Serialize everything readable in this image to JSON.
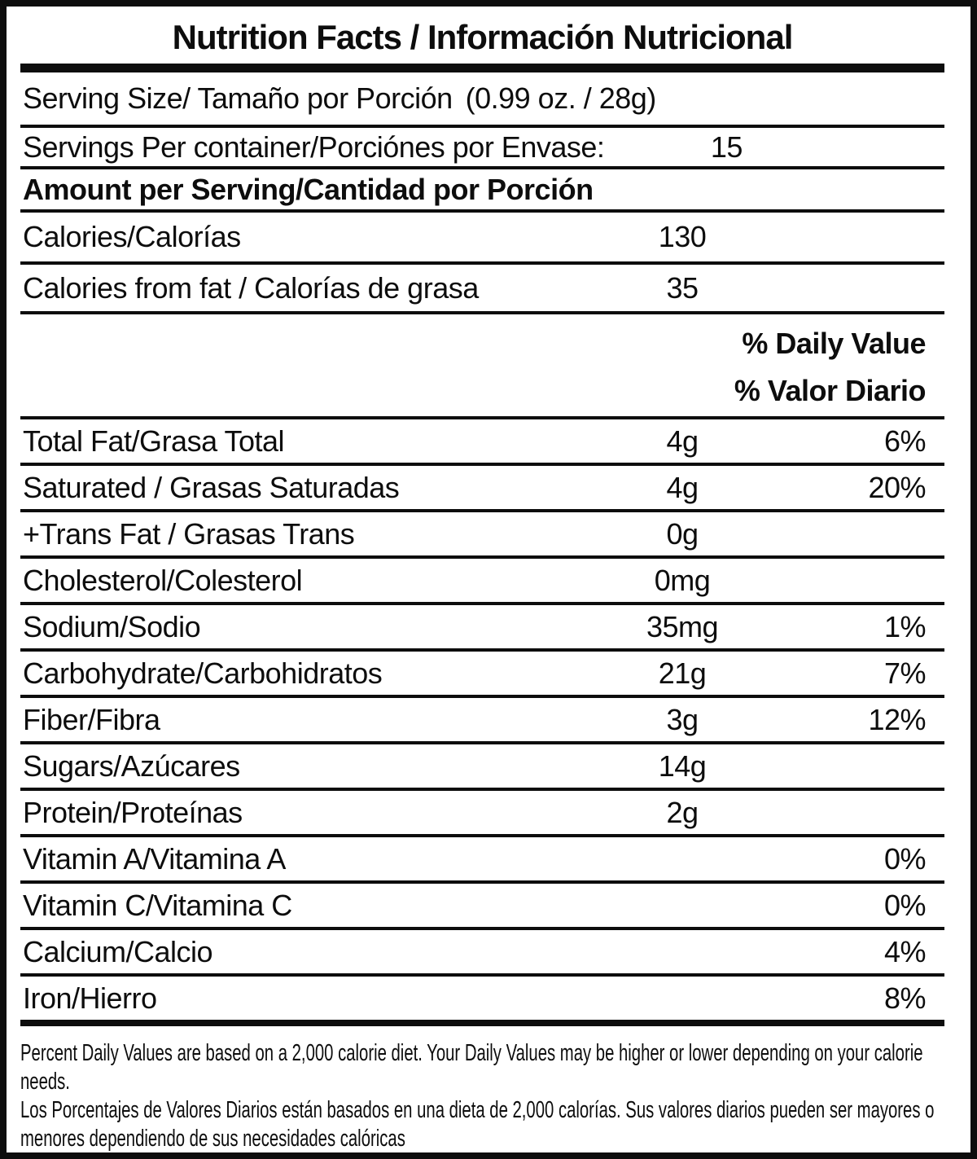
{
  "label": {
    "title": "Nutrition Facts / Información Nutricional",
    "serving_size": {
      "label": "Serving Size/ Tamaño por Porción",
      "value": "(0.99 oz. / 28g)"
    },
    "servings_per_container": {
      "label": "Servings Per container/Porciónes por Envase:",
      "value": "15"
    },
    "amount_per_serving": "Amount per Serving/Cantidad por Porción",
    "calories_rows": [
      {
        "label": "Calories/Calorías",
        "amount": "130"
      },
      {
        "label": "Calories from fat / Calorías de grasa",
        "amount": "35"
      }
    ],
    "daily_value_header": {
      "line1": "% Daily Value",
      "line2": "% Valor Diario"
    },
    "nutrient_rows": [
      {
        "label": "Total Fat/Grasa Total",
        "amount": "4g",
        "dv": "6%"
      },
      {
        "label": "Saturated / Grasas Saturadas",
        "amount": "4g",
        "dv": "20%"
      },
      {
        "label": "+Trans Fat / Grasas Trans",
        "amount": "0g",
        "dv": ""
      },
      {
        "label": "Cholesterol/Colesterol",
        "amount": "0mg",
        "dv": ""
      },
      {
        "label": "Sodium/Sodio",
        "amount": "35mg",
        "dv": "1%"
      },
      {
        "label": "Carbohydrate/Carbohidratos",
        "amount": "21g",
        "dv": "7%"
      },
      {
        "label": "Fiber/Fibra",
        "amount": "3g",
        "dv": "12%"
      },
      {
        "label": "Sugars/Azúcares",
        "amount": "14g",
        "dv": ""
      },
      {
        "label": "Protein/Proteínas",
        "amount": "2g",
        "dv": ""
      },
      {
        "label": "Vitamin A/Vitamina A",
        "amount": "",
        "dv": "0%"
      },
      {
        "label": "Vitamin C/Vitamina C",
        "amount": "",
        "dv": "0%"
      },
      {
        "label": "Calcium/Calcio",
        "amount": "",
        "dv": "4%"
      },
      {
        "label": "Iron/Hierro",
        "amount": "",
        "dv": "8%"
      }
    ],
    "footnotes": [
      "Percent Daily Values are based on a 2,000 calorie diet. Your Daily Values may be higher or lower depending on your calorie needs.",
      "Los Porcentajes de Valores Diarios están basados en una dieta de 2,000 calorías. Sus valores diarios pueden ser mayores o menores dependiendo de sus necesidades calóricas"
    ],
    "colors": {
      "ink": "#0d0d0d",
      "paper": "#ffffff"
    }
  }
}
